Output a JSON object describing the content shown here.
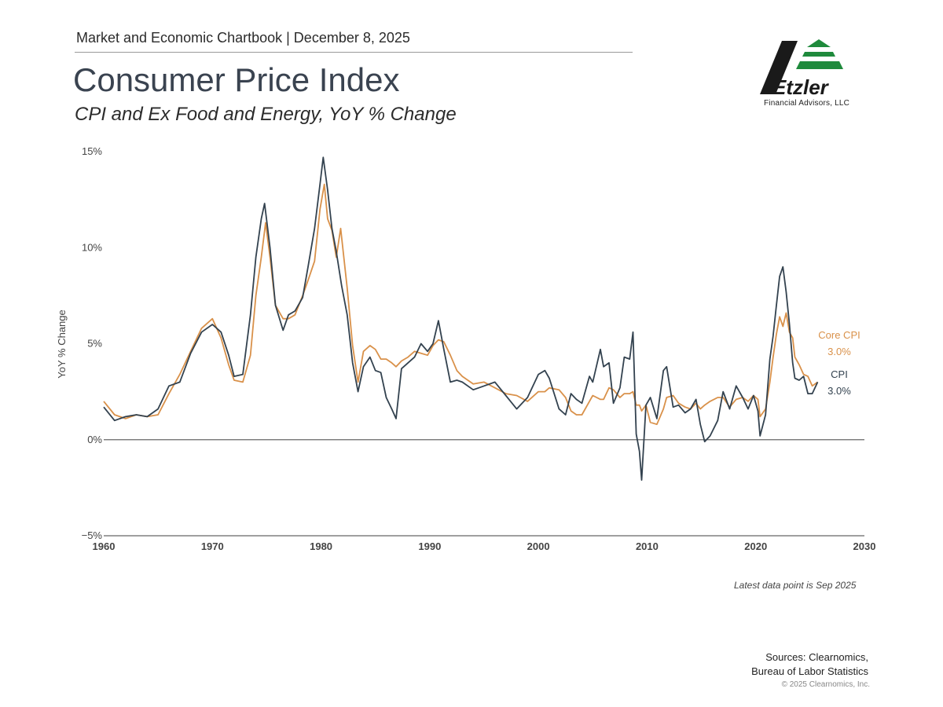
{
  "header": {
    "chartbook": "Market and Economic Chartbook | December 8, 2025",
    "title": "Consumer Price Index",
    "subtitle": "CPI and Ex Food and Energy, YoY % Change"
  },
  "logo": {
    "brand": "Etzler",
    "caption": "Financial Advisors, LLC",
    "colors": {
      "dark": "#1a1a1a",
      "green": "#1f8a3c"
    }
  },
  "colors": {
    "cpi": "#33424f",
    "core": "#d9914a",
    "axis": "#666666",
    "tick_text": "#444444"
  },
  "chart_data": {
    "type": "line",
    "title": "CPI and Ex Food and Energy, YoY % Change",
    "xlabel": "",
    "ylabel": "YoY % Change",
    "xlim": [
      1960,
      2030
    ],
    "ylim": [
      -5,
      15
    ],
    "x_ticks": [
      1960,
      1970,
      1980,
      1990,
      2000,
      2010,
      2020,
      2030
    ],
    "y_ticks": [
      {
        "value": -5,
        "label": "−5%"
      },
      {
        "value": 0,
        "label": "0%"
      },
      {
        "value": 5,
        "label": "5%"
      },
      {
        "value": 10,
        "label": "10%"
      },
      {
        "value": 15,
        "label": "15%"
      }
    ],
    "series": [
      {
        "name": "CPI",
        "label": "CPI",
        "latest_label": "3.0%",
        "points": [
          [
            1960,
            1.7
          ],
          [
            1961,
            1.0
          ],
          [
            1962,
            1.2
          ],
          [
            1963,
            1.3
          ],
          [
            1964,
            1.2
          ],
          [
            1965,
            1.6
          ],
          [
            1966,
            2.8
          ],
          [
            1967,
            3.0
          ],
          [
            1968,
            4.5
          ],
          [
            1969,
            5.6
          ],
          [
            1970,
            6.0
          ],
          [
            1970.8,
            5.6
          ],
          [
            1971.5,
            4.4
          ],
          [
            1972,
            3.3
          ],
          [
            1972.8,
            3.4
          ],
          [
            1973.5,
            6.5
          ],
          [
            1974,
            9.5
          ],
          [
            1974.5,
            11.5
          ],
          [
            1974.8,
            12.3
          ],
          [
            1975.3,
            10.0
          ],
          [
            1975.8,
            7.0
          ],
          [
            1976.5,
            5.7
          ],
          [
            1977,
            6.5
          ],
          [
            1977.6,
            6.7
          ],
          [
            1978.3,
            7.4
          ],
          [
            1978.8,
            9.0
          ],
          [
            1979.4,
            11.0
          ],
          [
            1979.9,
            13.3
          ],
          [
            1980.2,
            14.7
          ],
          [
            1980.6,
            13.0
          ],
          [
            1981,
            11.0
          ],
          [
            1981.4,
            9.8
          ],
          [
            1981.9,
            8.0
          ],
          [
            1982.4,
            6.5
          ],
          [
            1982.9,
            4.0
          ],
          [
            1983.4,
            2.5
          ],
          [
            1983.9,
            3.8
          ],
          [
            1984.5,
            4.3
          ],
          [
            1985,
            3.6
          ],
          [
            1985.5,
            3.5
          ],
          [
            1986,
            2.2
          ],
          [
            1986.5,
            1.6
          ],
          [
            1986.9,
            1.1
          ],
          [
            1987.4,
            3.7
          ],
          [
            1988,
            4.0
          ],
          [
            1988.6,
            4.3
          ],
          [
            1989.2,
            5.0
          ],
          [
            1989.8,
            4.6
          ],
          [
            1990.3,
            5.0
          ],
          [
            1990.8,
            6.2
          ],
          [
            1991.3,
            4.7
          ],
          [
            1991.9,
            3.0
          ],
          [
            1992.5,
            3.1
          ],
          [
            1993,
            3.0
          ],
          [
            1994,
            2.6
          ],
          [
            1995,
            2.8
          ],
          [
            1996,
            3.0
          ],
          [
            1997,
            2.3
          ],
          [
            1998,
            1.6
          ],
          [
            1999,
            2.2
          ],
          [
            2000,
            3.4
          ],
          [
            2000.6,
            3.6
          ],
          [
            2001,
            3.2
          ],
          [
            2001.9,
            1.6
          ],
          [
            2002.5,
            1.3
          ],
          [
            2003,
            2.4
          ],
          [
            2003.5,
            2.1
          ],
          [
            2004,
            1.9
          ],
          [
            2004.7,
            3.3
          ],
          [
            2005,
            3.0
          ],
          [
            2005.7,
            4.7
          ],
          [
            2006,
            3.8
          ],
          [
            2006.5,
            4.0
          ],
          [
            2006.9,
            1.9
          ],
          [
            2007.5,
            2.7
          ],
          [
            2007.9,
            4.3
          ],
          [
            2008.4,
            4.2
          ],
          [
            2008.7,
            5.6
          ],
          [
            2009,
            0.3
          ],
          [
            2009.3,
            -0.6
          ],
          [
            2009.5,
            -2.1
          ],
          [
            2009.9,
            1.8
          ],
          [
            2010.3,
            2.2
          ],
          [
            2010.9,
            1.1
          ],
          [
            2011.5,
            3.6
          ],
          [
            2011.8,
            3.8
          ],
          [
            2012.4,
            1.7
          ],
          [
            2012.9,
            1.8
          ],
          [
            2013.5,
            1.4
          ],
          [
            2014,
            1.6
          ],
          [
            2014.5,
            2.1
          ],
          [
            2014.9,
            0.8
          ],
          [
            2015.3,
            -0.1
          ],
          [
            2015.8,
            0.2
          ],
          [
            2016.5,
            1.0
          ],
          [
            2017,
            2.5
          ],
          [
            2017.6,
            1.6
          ],
          [
            2018.2,
            2.8
          ],
          [
            2018.8,
            2.2
          ],
          [
            2019.3,
            1.6
          ],
          [
            2019.8,
            2.3
          ],
          [
            2020.2,
            1.5
          ],
          [
            2020.4,
            0.2
          ],
          [
            2020.9,
            1.3
          ],
          [
            2021.3,
            4.2
          ],
          [
            2021.6,
            5.4
          ],
          [
            2021.9,
            7.0
          ],
          [
            2022.2,
            8.5
          ],
          [
            2022.5,
            9.0
          ],
          [
            2022.8,
            7.7
          ],
          [
            2023.1,
            6.0
          ],
          [
            2023.4,
            4.0
          ],
          [
            2023.6,
            3.2
          ],
          [
            2024,
            3.1
          ],
          [
            2024.4,
            3.3
          ],
          [
            2024.8,
            2.4
          ],
          [
            2025.2,
            2.4
          ],
          [
            2025.7,
            3.0
          ]
        ]
      },
      {
        "name": "Core CPI",
        "label": "Core CPI",
        "latest_label": "3.0%",
        "points": [
          [
            1960,
            2.0
          ],
          [
            1961,
            1.3
          ],
          [
            1962,
            1.1
          ],
          [
            1963,
            1.3
          ],
          [
            1964,
            1.2
          ],
          [
            1965,
            1.3
          ],
          [
            1966,
            2.4
          ],
          [
            1967,
            3.4
          ],
          [
            1968,
            4.6
          ],
          [
            1969,
            5.8
          ],
          [
            1970,
            6.3
          ],
          [
            1970.8,
            5.3
          ],
          [
            1971.5,
            3.9
          ],
          [
            1972,
            3.1
          ],
          [
            1972.8,
            3.0
          ],
          [
            1973.5,
            4.4
          ],
          [
            1974,
            7.5
          ],
          [
            1974.5,
            9.5
          ],
          [
            1974.9,
            11.3
          ],
          [
            1975.3,
            9.5
          ],
          [
            1975.8,
            7.0
          ],
          [
            1976.5,
            6.3
          ],
          [
            1977,
            6.3
          ],
          [
            1977.6,
            6.5
          ],
          [
            1978.3,
            7.5
          ],
          [
            1978.8,
            8.3
          ],
          [
            1979.4,
            9.3
          ],
          [
            1979.9,
            12.0
          ],
          [
            1980.3,
            13.3
          ],
          [
            1980.6,
            11.5
          ],
          [
            1981,
            10.9
          ],
          [
            1981.4,
            9.5
          ],
          [
            1981.8,
            11.0
          ],
          [
            1982.4,
            7.9
          ],
          [
            1982.9,
            4.9
          ],
          [
            1983.4,
            3.0
          ],
          [
            1983.9,
            4.6
          ],
          [
            1984.5,
            4.9
          ],
          [
            1985,
            4.7
          ],
          [
            1985.5,
            4.2
          ],
          [
            1986,
            4.2
          ],
          [
            1986.5,
            4.0
          ],
          [
            1986.9,
            3.8
          ],
          [
            1987.4,
            4.1
          ],
          [
            1988,
            4.3
          ],
          [
            1988.6,
            4.6
          ],
          [
            1989.2,
            4.5
          ],
          [
            1989.8,
            4.4
          ],
          [
            1990.3,
            4.9
          ],
          [
            1990.8,
            5.2
          ],
          [
            1991.3,
            5.1
          ],
          [
            1991.9,
            4.4
          ],
          [
            1992.5,
            3.6
          ],
          [
            1993,
            3.3
          ],
          [
            1994,
            2.9
          ],
          [
            1995,
            3.0
          ],
          [
            1996,
            2.7
          ],
          [
            1997,
            2.4
          ],
          [
            1998,
            2.3
          ],
          [
            1999,
            2.0
          ],
          [
            2000,
            2.5
          ],
          [
            2000.6,
            2.5
          ],
          [
            2001,
            2.7
          ],
          [
            2001.9,
            2.6
          ],
          [
            2002.5,
            2.2
          ],
          [
            2003,
            1.5
          ],
          [
            2003.5,
            1.3
          ],
          [
            2004,
            1.3
          ],
          [
            2004.7,
            2.0
          ],
          [
            2005,
            2.3
          ],
          [
            2005.7,
            2.1
          ],
          [
            2006,
            2.1
          ],
          [
            2006.5,
            2.7
          ],
          [
            2006.9,
            2.6
          ],
          [
            2007.5,
            2.2
          ],
          [
            2007.9,
            2.4
          ],
          [
            2008.4,
            2.4
          ],
          [
            2008.7,
            2.5
          ],
          [
            2009,
            1.8
          ],
          [
            2009.3,
            1.8
          ],
          [
            2009.5,
            1.5
          ],
          [
            2009.9,
            1.8
          ],
          [
            2010.3,
            0.9
          ],
          [
            2010.9,
            0.8
          ],
          [
            2011.5,
            1.6
          ],
          [
            2011.8,
            2.2
          ],
          [
            2012.4,
            2.3
          ],
          [
            2012.9,
            1.9
          ],
          [
            2013.5,
            1.7
          ],
          [
            2014,
            1.6
          ],
          [
            2014.5,
            1.9
          ],
          [
            2014.9,
            1.6
          ],
          [
            2015.3,
            1.8
          ],
          [
            2015.8,
            2.0
          ],
          [
            2016.5,
            2.2
          ],
          [
            2017,
            2.2
          ],
          [
            2017.6,
            1.7
          ],
          [
            2018.2,
            2.1
          ],
          [
            2018.8,
            2.2
          ],
          [
            2019.3,
            2.0
          ],
          [
            2019.8,
            2.3
          ],
          [
            2020.2,
            2.1
          ],
          [
            2020.4,
            1.2
          ],
          [
            2020.9,
            1.6
          ],
          [
            2021.3,
            3.0
          ],
          [
            2021.6,
            4.3
          ],
          [
            2021.9,
            5.5
          ],
          [
            2022.2,
            6.4
          ],
          [
            2022.5,
            5.9
          ],
          [
            2022.8,
            6.6
          ],
          [
            2023.1,
            5.6
          ],
          [
            2023.4,
            5.3
          ],
          [
            2023.6,
            4.3
          ],
          [
            2024,
            3.9
          ],
          [
            2024.4,
            3.4
          ],
          [
            2024.8,
            3.3
          ],
          [
            2025.2,
            2.8
          ],
          [
            2025.7,
            3.0
          ]
        ]
      }
    ],
    "latest_note": "Latest data point is Sep 2025"
  },
  "footer": {
    "sources_line1": "Sources: Clearnomics,",
    "sources_line2": "Bureau of Labor Statistics",
    "copyright": "© 2025 Clearnomics, Inc."
  }
}
